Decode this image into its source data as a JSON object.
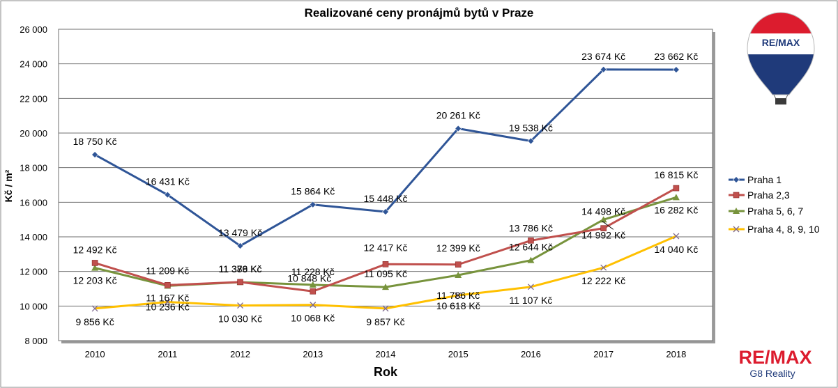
{
  "chart_data": {
    "type": "line",
    "title": "Realizované ceny pronájmů bytů v Praze",
    "xlabel": "Rok",
    "ylabel": "Kč / m²",
    "categories": [
      "2010",
      "2011",
      "2012",
      "2013",
      "2014",
      "2015",
      "2016",
      "2017",
      "2018"
    ],
    "ylim": [
      8000,
      26000
    ],
    "yticks": [
      8000,
      10000,
      12000,
      14000,
      16000,
      18000,
      20000,
      22000,
      24000,
      26000
    ],
    "ytick_labels": [
      "8 000",
      "10 000",
      "12 000",
      "14 000",
      "16 000",
      "18 000",
      "20 000",
      "22 000",
      "24 000",
      "26 000"
    ],
    "grid": true,
    "legend_position": "right",
    "series": [
      {
        "name": "Praha 1",
        "color": "#2f5597",
        "marker": "diamond",
        "values": [
          18750,
          16431,
          13479,
          15864,
          15448,
          20261,
          19538,
          23674,
          23662
        ],
        "labels": [
          "18 750 Kč",
          "16 431 Kč",
          "13 479 Kč",
          "15 864 Kč",
          "15 448 Kč",
          "20 261 Kč",
          "19 538 Kč",
          "23 674 Kč",
          "23 662 Kč"
        ]
      },
      {
        "name": "Praha 2,3",
        "color": "#c0504d",
        "marker": "square",
        "values": [
          12492,
          11209,
          11386,
          10848,
          12417,
          12399,
          13786,
          14498,
          16815
        ],
        "labels": [
          "12 492 Kč",
          "11 209 Kč",
          "11 386 Kč",
          "10 848 Kč",
          "12 417 Kč",
          "12 399 Kč",
          "13 786 Kč",
          "14 498 Kč",
          "16 815 Kč"
        ]
      },
      {
        "name": "Praha 5, 6, 7",
        "color": "#77933c",
        "marker": "triangle",
        "values": [
          12203,
          11167,
          11379,
          11228,
          11095,
          11786,
          12644,
          14992,
          16282
        ],
        "labels": [
          "12 203 Kč",
          "11 167 Kč",
          "11 379 Kč",
          "11 228 Kč",
          "11 095 Kč",
          "11 786 Kč",
          "12 644 Kč",
          "14 992 Kč",
          "16 282 Kč"
        ]
      },
      {
        "name": "Praha 4, 8, 9, 10",
        "color": "#ffc000",
        "marker": "x",
        "values": [
          9856,
          10236,
          10030,
          10068,
          9857,
          10618,
          11107,
          12222,
          14040
        ],
        "labels": [
          "9 856 Kč",
          "10 236 Kč",
          "10 030 Kč",
          "10 068 Kč",
          "9 857 Kč",
          "10 618 Kč",
          "11 107 Kč",
          "12 222 Kč",
          "14 040 Kč"
        ]
      }
    ]
  },
  "branding": {
    "balloon_text": "RE/MAX",
    "logo_text": "RE/MAX",
    "logo_subtitle": "G8 Reality",
    "red": "#dc1c2e",
    "blue": "#1f3a7a"
  }
}
